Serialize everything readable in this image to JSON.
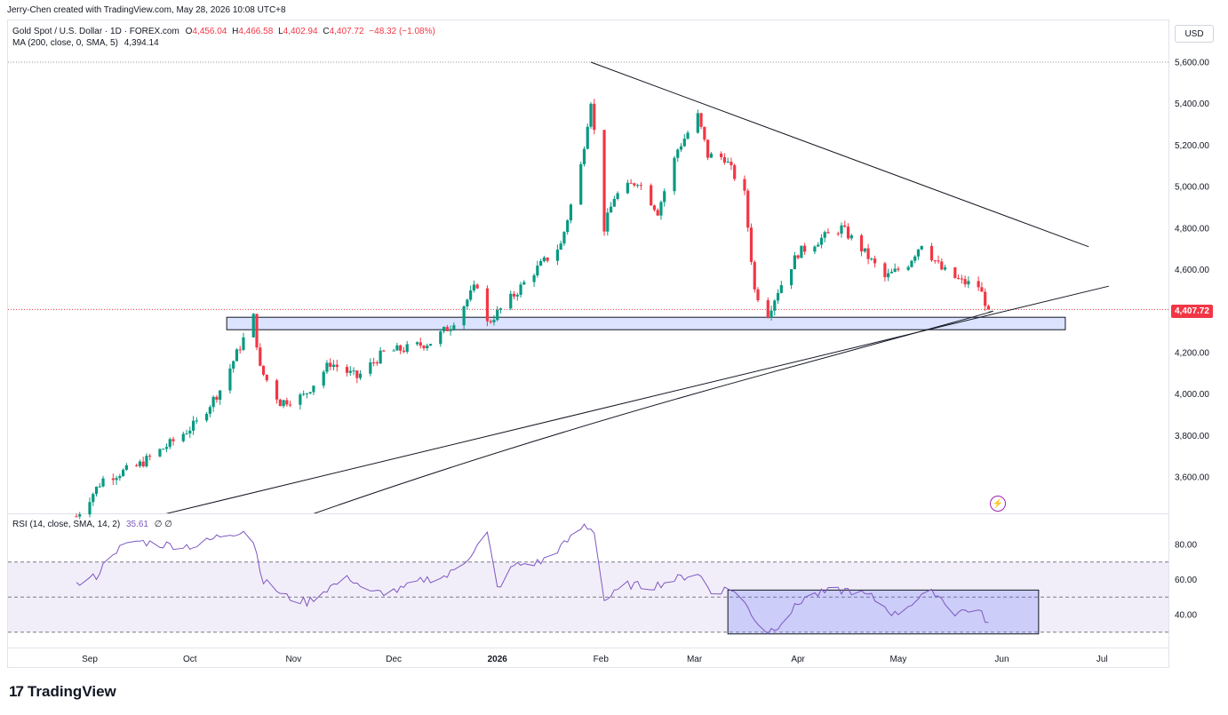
{
  "header": {
    "credit": "Jerry-Chen created with TradingView.com, May 28, 2026 10:08 UTC+8"
  },
  "legend": {
    "symbol": "Gold Spot / U.S. Dollar · 1D · FOREX.com",
    "open_label": "O",
    "open": "4,456.04",
    "high_label": "H",
    "high": "4,466.58",
    "low_label": "L",
    "low": "4,402.94",
    "close_label": "C",
    "close": "4,407.72",
    "change": "−48.32 (−1.08%)",
    "ma": "MA (200, close, 0, SMA, 5)",
    "ma_value": "4,394.14",
    "rsi": "RSI (14, close, SMA, 14, 2)",
    "rsi_value": "35.61",
    "rsi_extra": "∅ ∅"
  },
  "currency_button": "USD",
  "last_price_label": "4,407.72",
  "brand": {
    "mark": "17",
    "name": "TradingView"
  },
  "icons": {
    "bolt": "lightning-icon",
    "logo": "tradingview-logo-icon"
  },
  "colors": {
    "up": "#089981",
    "down": "#f23645",
    "rsi": "#7e57c2",
    "zone_fill": "#dbe3ff",
    "zone_stroke": "#131722"
  },
  "chart_data": [
    {
      "type": "candlestick",
      "title": "Gold Spot / U.S. Dollar · 1D · FOREX.com",
      "ylim": [
        3400,
        5690
      ],
      "y_ticks": [
        "5,600.00",
        "5,400.00",
        "5,200.00",
        "5,000.00",
        "4,800.00",
        "4,600.00",
        "4,200.00",
        "4,000.00",
        "3,800.00",
        "3,600.00"
      ],
      "x_ticks": [
        "Sep",
        "Oct",
        "Nov",
        "Dec",
        "2026",
        "Feb",
        "Mar",
        "Apr",
        "May",
        "Jun",
        "Jul"
      ],
      "last_close": 4407.72,
      "price_path": [
        [
          "Aug 28",
          3410
        ],
        [
          "Sep 5",
          3590
        ],
        [
          "Sep 15",
          3650
        ],
        [
          "Sep 25",
          3760
        ],
        [
          "Oct 3",
          3860
        ],
        [
          "Oct 10",
          4020
        ],
        [
          "Oct 16",
          4230
        ],
        [
          "Oct 20",
          4370
        ],
        [
          "Oct 22",
          4120
        ],
        [
          "Oct 28",
          3960
        ],
        [
          "Nov 4",
          3990
        ],
        [
          "Nov 12",
          4150
        ],
        [
          "Nov 20",
          4080
        ],
        [
          "Nov 28",
          4200
        ],
        [
          "Dec 5",
          4220
        ],
        [
          "Dec 12",
          4250
        ],
        [
          "Dec 18",
          4330
        ],
        [
          "Dec 26",
          4530
        ],
        [
          "Dec 29",
          4340
        ],
        [
          "Jan 5",
          4460
        ],
        [
          "Jan 12",
          4590
        ],
        [
          "Jan 20",
          4720
        ],
        [
          "Jan 26",
          5100
        ],
        [
          "Jan 29",
          5420
        ],
        [
          "Feb 2",
          4800
        ],
        [
          "Feb 5",
          4950
        ],
        [
          "Feb 12",
          5030
        ],
        [
          "Feb 18",
          4880
        ],
        [
          "Feb 24",
          5180
        ],
        [
          "Mar 2",
          5340
        ],
        [
          "Mar 5",
          5150
        ],
        [
          "Mar 10",
          5140
        ],
        [
          "Mar 16",
          4960
        ],
        [
          "Mar 19",
          4500
        ],
        [
          "Mar 23",
          4390
        ],
        [
          "Mar 26",
          4500
        ],
        [
          "Apr 1",
          4680
        ],
        [
          "Apr 8",
          4750
        ],
        [
          "Apr 14",
          4800
        ],
        [
          "Apr 20",
          4700
        ],
        [
          "Apr 27",
          4560
        ],
        [
          "May 4",
          4630
        ],
        [
          "May 8",
          4730
        ],
        [
          "May 14",
          4600
        ],
        [
          "May 20",
          4540
        ],
        [
          "May 25",
          4520
        ],
        [
          "May 28",
          4407.72
        ]
      ],
      "annotations": {
        "resistance_line": [
          [
            "Jan 29",
            5600
          ],
          [
            "Jun 27",
            4710
          ]
        ],
        "support_line": [
          [
            "Sep 18",
            3400
          ],
          [
            "Jul 3",
            4520
          ]
        ],
        "ma200_curve": [
          [
            "Nov 3",
            3400
          ],
          [
            "Jan 5",
            3760
          ],
          [
            "Mar 23",
            4100
          ],
          [
            "May 28",
            4394
          ]
        ],
        "support_zone": {
          "from": "Oct 12",
          "to": "Jun 20",
          "low": 4310,
          "high": 4370
        },
        "current_price_line": 4407.72
      }
    },
    {
      "type": "line",
      "title": "RSI (14, close, SMA, 14, 2)",
      "ylim": [
        27,
        94
      ],
      "y_ticks": [
        "80.00",
        "60.00",
        "40.00"
      ],
      "bands": {
        "upper": 70,
        "middle": 50,
        "lower": 30
      },
      "last_value": 35.61,
      "series": [
        {
          "values": [
            [
              "Aug 28",
              57
            ],
            [
              "Sep 3",
              62
            ],
            [
              "Sep 8",
              76
            ],
            [
              "Sep 15",
              82
            ],
            [
              "Sep 22",
              80
            ],
            [
              "Oct 3",
              79
            ],
            [
              "Oct 10",
              85
            ],
            [
              "Oct 17",
              88
            ],
            [
              "Oct 20",
              82
            ],
            [
              "Oct 23",
              59
            ],
            [
              "Oct 30",
              50
            ],
            [
              "Nov 5",
              47
            ],
            [
              "Nov 12",
              56
            ],
            [
              "Nov 18",
              61
            ],
            [
              "Nov 24",
              52
            ],
            [
              "Dec 3",
              54
            ],
            [
              "Dec 10",
              60
            ],
            [
              "Dec 17",
              62
            ],
            [
              "Dec 22",
              70
            ],
            [
              "Dec 29",
              86
            ],
            [
              "Jan 1",
              55
            ],
            [
              "Jan 6",
              68
            ],
            [
              "Jan 14",
              70
            ],
            [
              "Jan 21",
              80
            ],
            [
              "Jan 27",
              91
            ],
            [
              "Jan 30",
              88
            ],
            [
              "Feb 2",
              48
            ],
            [
              "Feb 9",
              57
            ],
            [
              "Feb 16",
              56
            ],
            [
              "Feb 23",
              60
            ],
            [
              "Mar 2",
              64
            ],
            [
              "Mar 6",
              53
            ],
            [
              "Mar 12",
              55
            ],
            [
              "Mar 17",
              44
            ],
            [
              "Mar 22",
              29
            ],
            [
              "Mar 26",
              34
            ],
            [
              "Apr 3",
              50
            ],
            [
              "Apr 10",
              53
            ],
            [
              "Apr 16",
              54
            ],
            [
              "Apr 23",
              50
            ],
            [
              "Apr 30",
              40
            ],
            [
              "May 6",
              48
            ],
            [
              "May 12",
              53
            ],
            [
              "May 18",
              41
            ],
            [
              "May 24",
              44
            ],
            [
              "May 28",
              35.61
            ]
          ]
        }
      ],
      "annotations": {
        "highlight_box": {
          "from": "Mar 11",
          "to": "Jun 12",
          "low": 29,
          "high": 54
        }
      }
    }
  ]
}
